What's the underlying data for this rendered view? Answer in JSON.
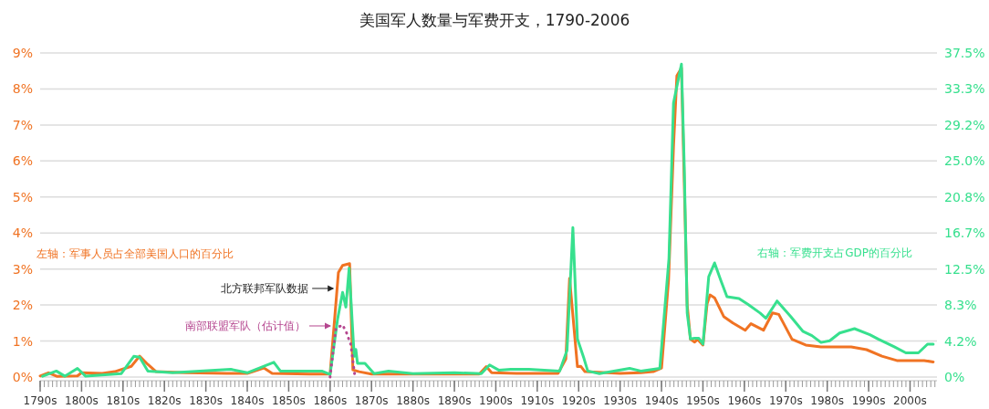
{
  "chart_data": {
    "type": "line",
    "title": "美国军人数量与军费开支，1790-2006",
    "xlim": [
      1790,
      2006.5
    ],
    "xticks": [
      {
        "value": 1790,
        "label": "1790s"
      },
      {
        "value": 1800,
        "label": "1800s"
      },
      {
        "value": 1810,
        "label": "1810s"
      },
      {
        "value": 1820,
        "label": "1820s"
      },
      {
        "value": 1830,
        "label": "1830s"
      },
      {
        "value": 1840,
        "label": "1840s"
      },
      {
        "value": 1850,
        "label": "1850s"
      },
      {
        "value": 1860,
        "label": "1860s"
      },
      {
        "value": 1870,
        "label": "1870s"
      },
      {
        "value": 1880,
        "label": "1880s"
      },
      {
        "value": 1890,
        "label": "1890s"
      },
      {
        "value": 1900,
        "label": "1900s"
      },
      {
        "value": 1910,
        "label": "1910s"
      },
      {
        "value": 1920,
        "label": "1920s"
      },
      {
        "value": 1930,
        "label": "1930s"
      },
      {
        "value": 1940,
        "label": "1940s"
      },
      {
        "value": 1950,
        "label": "1950s"
      },
      {
        "value": 1960,
        "label": "1960s"
      },
      {
        "value": 1970,
        "label": "1970s"
      },
      {
        "value": 1980,
        "label": "1980s"
      },
      {
        "value": 1990,
        "label": "1990s"
      },
      {
        "value": 2000,
        "label": "2000s"
      }
    ],
    "ylim": [
      0,
      9
    ],
    "yticks": [
      {
        "value": 0,
        "label": "0%"
      },
      {
        "value": 1,
        "label": "1%"
      },
      {
        "value": 2,
        "label": "2%"
      },
      {
        "value": 3,
        "label": "3%"
      },
      {
        "value": 4,
        "label": "4%"
      },
      {
        "value": 5,
        "label": "5%"
      },
      {
        "value": 6,
        "label": "6%"
      },
      {
        "value": 7,
        "label": "7%"
      },
      {
        "value": 8,
        "label": "8%"
      },
      {
        "value": 9,
        "label": "9%"
      }
    ],
    "y2lim": [
      0,
      37.5
    ],
    "y2ticks": [
      {
        "value": 0,
        "label": "0%"
      },
      {
        "value": 4.17,
        "label": "4.2%"
      },
      {
        "value": 8.33,
        "label": "8.3%"
      },
      {
        "value": 12.5,
        "label": "12.5%"
      },
      {
        "value": 16.67,
        "label": "16.7%"
      },
      {
        "value": 20.83,
        "label": "20.8%"
      },
      {
        "value": 25,
        "label": "25.0%"
      },
      {
        "value": 29.17,
        "label": "29.2%"
      },
      {
        "value": 33.33,
        "label": "33.3%"
      },
      {
        "value": 37.5,
        "label": "37.5%"
      }
    ],
    "grid": "y",
    "series": [
      {
        "color": "#f07323",
        "x": [
          1790,
          1792,
          1794,
          1799,
          1800,
          1805,
          1808,
          1812,
          1814,
          1816,
          1818,
          1825,
          1835,
          1840,
          1844,
          1846,
          1855,
          1860,
          1861,
          1862,
          1863,
          1864.7,
          1865.5,
          1867,
          1870,
          1880,
          1890,
          1896,
          1897.7,
          1899,
          1905,
          1915,
          1916.9,
          1917.8,
          1919.7,
          1920.5,
          1921.5,
          1930,
          1935,
          1938,
          1940,
          1941.7,
          1942.9,
          1943.7,
          1944.8,
          1945.5,
          1946.2,
          1947,
          1948,
          1948.7,
          1950,
          1951,
          1951.7,
          1952.8,
          1955,
          1957.2,
          1960.2,
          1961.6,
          1964.6,
          1966.8,
          1968.3,
          1971.5,
          1974.8,
          1978.5,
          1985.8,
          1989.5,
          1993.2,
          1996.8,
          2003.4,
          2005.6
        ],
        "values": [
          0.03,
          0.12,
          0.02,
          0.03,
          0.12,
          0.1,
          0.15,
          0.3,
          0.58,
          0.35,
          0.15,
          0.12,
          0.1,
          0.1,
          0.25,
          0.1,
          0.08,
          0.08,
          1.5,
          2.9,
          3.1,
          3.15,
          0.2,
          0.15,
          0.08,
          0.08,
          0.08,
          0.08,
          0.29,
          0.12,
          0.1,
          0.1,
          0.5,
          2.74,
          0.29,
          0.3,
          0.15,
          0.1,
          0.12,
          0.15,
          0.25,
          2.7,
          6.4,
          8.37,
          8.58,
          5.4,
          2.0,
          1.05,
          0.97,
          1.05,
          0.89,
          2.03,
          2.28,
          2.2,
          1.68,
          1.5,
          1.3,
          1.48,
          1.3,
          1.78,
          1.74,
          1.05,
          0.89,
          0.84,
          0.84,
          0.76,
          0.58,
          0.46,
          0.46,
          0.42
        ]
      },
      {
        "color": "#37e08e",
        "axis": "y2",
        "x": [
          1790.6,
          1793.9,
          1796,
          1799,
          1801,
          1809.6,
          1812.6,
          1814,
          1816,
          1822,
          1836,
          1840,
          1846.4,
          1848,
          1858,
          1860,
          1861.8,
          1863,
          1863.8,
          1864.6,
          1865.8,
          1866.2,
          1866.6,
          1868.4,
          1870.6,
          1874.1,
          1880,
          1890,
          1896.5,
          1898.5,
          1900.7,
          1903.6,
          1908,
          1915.4,
          1917.2,
          1918.6,
          1919.7,
          1921.3,
          1922.2,
          1925,
          1932.3,
          1935,
          1939.6,
          1941.8,
          1942.9,
          1944.8,
          1945.5,
          1946.2,
          1947,
          1948,
          1949,
          1950,
          1951.4,
          1952.8,
          1954.3,
          1955.8,
          1958.7,
          1960.9,
          1963.8,
          1965.2,
          1967.9,
          1971.2,
          1974.1,
          1976.3,
          1978.5,
          1980.6,
          1983,
          1986.6,
          1990.3,
          1992.3,
          1996.2,
          1999,
          2002,
          2004.2,
          2005.6
        ],
        "values": [
          0.1,
          0.7,
          0.1,
          1.0,
          0.1,
          0.4,
          2.4,
          2.3,
          0.7,
          0.5,
          0.9,
          0.5,
          1.7,
          0.7,
          0.7,
          0.3,
          6.7,
          9.8,
          8.1,
          12.6,
          2.4,
          3.2,
          1.6,
          1.6,
          0.4,
          0.7,
          0.4,
          0.5,
          0.4,
          1.4,
          0.8,
          0.9,
          0.9,
          0.7,
          3.1,
          17.3,
          4.4,
          2.1,
          0.7,
          0.4,
          1.0,
          0.7,
          1.0,
          13.7,
          31.7,
          36.2,
          24.3,
          7.4,
          4.4,
          4.5,
          4.5,
          3.8,
          11.6,
          13.2,
          11.2,
          9.3,
          9.1,
          8.4,
          7.4,
          6.8,
          8.8,
          7.0,
          5.3,
          4.8,
          4.0,
          4.2,
          5.1,
          5.6,
          4.9,
          4.4,
          3.5,
          2.8,
          2.8,
          3.8,
          3.8
        ]
      },
      {
        "color": "#b5468f",
        "line_style": "dotted",
        "x": [
          1860,
          1861.4,
          1863,
          1864,
          1865,
          1866
        ],
        "values": [
          0,
          1.35,
          1.45,
          1.22,
          0.9,
          0
        ]
      }
    ],
    "annotations": [
      "左轴：军事人员占全部美国人口的百分比",
      "右轴：军费开支占GDP的百分比",
      {
        "text": "北方联邦军队数据",
        "x": 1861.4,
        "y": 2.46
      },
      {
        "text": "南部联盟军队（估计值）",
        "x": 1860.7,
        "y": 1.42
      }
    ]
  }
}
